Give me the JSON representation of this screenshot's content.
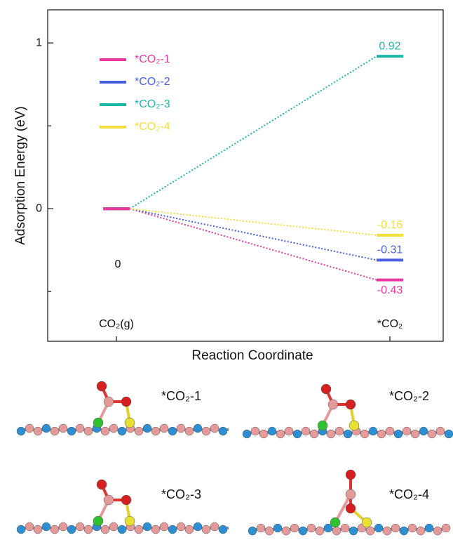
{
  "chart_data": {
    "type": "energy-levels",
    "y_label": "Adsorption Energy (eV)",
    "x_label": "Reaction Coordinate",
    "categories": [
      "CO₂(g)",
      "*CO₂"
    ],
    "ylim": [
      -0.8,
      1.2
    ],
    "yticks": [
      0,
      1
    ],
    "minor_yticks": [
      -0.5,
      0.5
    ],
    "series": [
      {
        "name": "*CO₂-1",
        "color": "#e6399b",
        "values": [
          0,
          -0.43
        ]
      },
      {
        "name": "*CO₂-2",
        "color": "#4a5ee0",
        "values": [
          0,
          -0.31
        ]
      },
      {
        "name": "*CO₂-3",
        "color": "#1fb5a8",
        "values": [
          0,
          0.92
        ]
      },
      {
        "name": "*CO₂-4",
        "color": "#f2e03a",
        "values": [
          0,
          -0.16
        ]
      }
    ]
  },
  "panels": [
    "*CO₂-1",
    "*CO₂-2",
    "*CO₂-3",
    "*CO₂-4"
  ]
}
